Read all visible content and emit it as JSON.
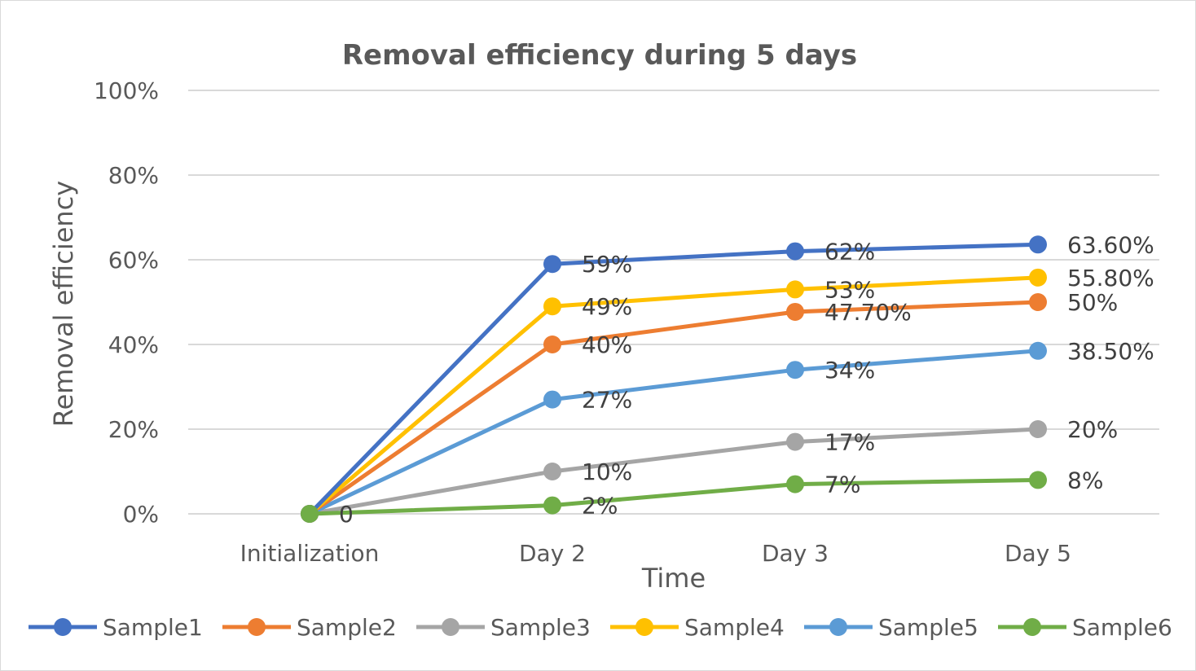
{
  "chart_data": {
    "type": "line",
    "title": "Removal efficiency during 5 days",
    "xlabel": "Time",
    "ylabel": "Removal efficiency",
    "categories": [
      "Initialization",
      "Day 2",
      "Day 3",
      "Day 5"
    ],
    "ylim": [
      0,
      100
    ],
    "yticks": [
      0,
      20,
      40,
      60,
      80,
      100
    ],
    "ytick_labels": [
      "0%",
      "20%",
      "40%",
      "60%",
      "80%",
      "100%"
    ],
    "grid": true,
    "legend": "bottom",
    "series": [
      {
        "name": "Sample1",
        "color": "#4472c4",
        "values": [
          0,
          59,
          62,
          63.6
        ],
        "labels": [
          "",
          "59%",
          "62%",
          "63.60%"
        ]
      },
      {
        "name": "Sample2",
        "color": "#ed7d31",
        "values": [
          0,
          40,
          47.7,
          50
        ],
        "labels": [
          "",
          "40%",
          "47.70%",
          "50%"
        ]
      },
      {
        "name": "Sample3",
        "color": "#a5a5a5",
        "values": [
          0,
          10,
          17,
          20
        ],
        "labels": [
          "",
          "10%",
          "17%",
          "20%"
        ]
      },
      {
        "name": "Sample4",
        "color": "#ffc000",
        "values": [
          0,
          49,
          53,
          55.8
        ],
        "labels": [
          "",
          "49%",
          "53%",
          "55.80%"
        ]
      },
      {
        "name": "Sample5",
        "color": "#5b9bd5",
        "values": [
          0,
          27,
          34,
          38.5
        ],
        "labels": [
          "",
          "27%",
          "34%",
          "38.50%"
        ]
      },
      {
        "name": "Sample6",
        "color": "#70ad47",
        "values": [
          0,
          2,
          7,
          8
        ],
        "labels": [
          "0",
          "2%",
          "7%",
          "8%"
        ]
      }
    ]
  }
}
